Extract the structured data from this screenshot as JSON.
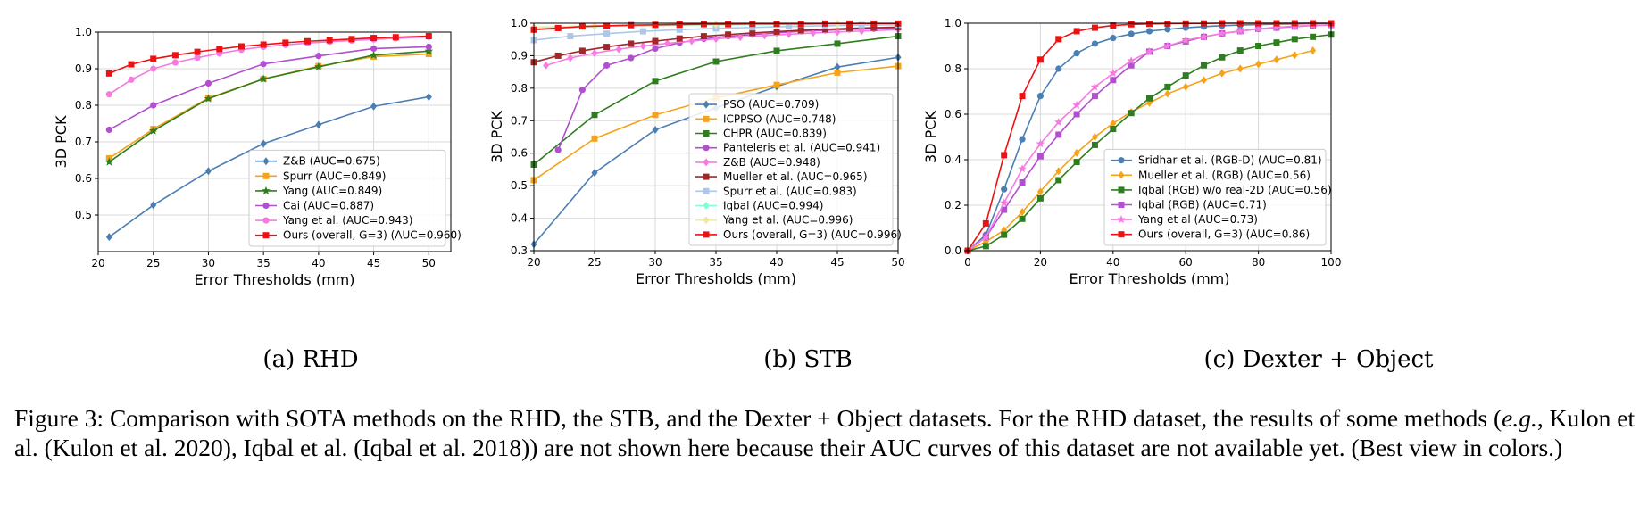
{
  "chart_data": [
    {
      "type": "line",
      "ylabel": "3D PCK",
      "xlabel": "Error Thresholds (mm)",
      "xlim": [
        20,
        52
      ],
      "ylim": [
        0.4,
        1.0
      ],
      "xticks": [
        20,
        25,
        30,
        35,
        40,
        45,
        50
      ],
      "yticks": [
        0.5,
        0.6,
        0.7,
        0.8,
        0.9,
        1.0
      ],
      "grid": true,
      "legend_position": "lower-right",
      "subcaption": "(a)  RHD",
      "x": [
        21,
        25,
        30,
        35,
        40,
        45,
        50
      ],
      "series": [
        {
          "name": "Z&B (AUC=0.675)",
          "color": "#4b7fb3",
          "marker": "diamond",
          "values": [
            0.44,
            0.527,
            0.62,
            0.695,
            0.747,
            0.797,
            0.823
          ]
        },
        {
          "name": "Spurr (AUC=0.849)",
          "color": "#f5a31a",
          "marker": "square",
          "values": [
            0.655,
            0.735,
            0.82,
            0.872,
            0.907,
            0.933,
            0.94
          ]
        },
        {
          "name": "Yang (AUC=0.849)",
          "color": "#2e7d1e",
          "marker": "star",
          "values": [
            0.645,
            0.73,
            0.818,
            0.872,
            0.905,
            0.937,
            0.948
          ]
        },
        {
          "name": "Cai (AUC=0.887)",
          "color": "#b24fcf",
          "marker": "circle",
          "values": [
            0.733,
            0.8,
            0.86,
            0.913,
            0.935,
            0.955,
            0.96
          ]
        },
        {
          "name": "Yang et al. (AUC=0.943)",
          "color": "#f57be0",
          "marker": "circle",
          "x": [
            21,
            23,
            25,
            27,
            29,
            31,
            33,
            35,
            37,
            39,
            41,
            43,
            45,
            47,
            50
          ],
          "values": [
            0.83,
            0.87,
            0.9,
            0.917,
            0.93,
            0.942,
            0.952,
            0.96,
            0.965,
            0.97,
            0.974,
            0.977,
            0.98,
            0.983,
            0.987
          ]
        },
        {
          "name": "Ours (overall, G=3) (AUC=0.960)",
          "color": "#ee1111",
          "marker": "square",
          "x": [
            21,
            23,
            25,
            27,
            29,
            31,
            33,
            35,
            37,
            39,
            41,
            43,
            45,
            47,
            50
          ],
          "values": [
            0.887,
            0.912,
            0.927,
            0.937,
            0.946,
            0.954,
            0.961,
            0.966,
            0.971,
            0.975,
            0.978,
            0.981,
            0.984,
            0.986,
            0.989
          ]
        }
      ]
    },
    {
      "type": "line",
      "ylabel": "3D PCK",
      "xlabel": "Error Thresholds (mm)",
      "xlim": [
        20,
        50
      ],
      "ylim": [
        0.3,
        1.0
      ],
      "xticks": [
        20,
        25,
        30,
        35,
        40,
        45,
        50
      ],
      "yticks": [
        0.3,
        0.4,
        0.5,
        0.6,
        0.7,
        0.8,
        0.9,
        1.0
      ],
      "grid": true,
      "legend_position": "lower-right",
      "subcaption": "(b)  STB",
      "x": [
        20,
        25,
        30,
        35,
        40,
        45,
        50
      ],
      "series": [
        {
          "name": "PSO (AUC=0.709)",
          "color": "#4b7fb3",
          "marker": "diamond",
          "values": [
            0.32,
            0.54,
            0.672,
            0.74,
            0.805,
            0.865,
            0.895
          ]
        },
        {
          "name": "ICPPSO (AUC=0.748)",
          "color": "#f5a31a",
          "marker": "square",
          "values": [
            0.517,
            0.645,
            0.718,
            0.77,
            0.81,
            0.848,
            0.868
          ]
        },
        {
          "name": "CHPR (AUC=0.839)",
          "color": "#2e7d1e",
          "marker": "square",
          "values": [
            0.565,
            0.718,
            0.822,
            0.882,
            0.915,
            0.937,
            0.96
          ]
        },
        {
          "name": "Panteleris et al. (AUC=0.941)",
          "color": "#b24fcf",
          "marker": "circle",
          "x": [
            22,
            24,
            26,
            28,
            30,
            32,
            34,
            36,
            38,
            40,
            42,
            44,
            46,
            48,
            50
          ],
          "values": [
            0.61,
            0.795,
            0.87,
            0.893,
            0.922,
            0.94,
            0.952,
            0.96,
            0.965,
            0.97,
            0.975,
            0.978,
            0.981,
            0.983,
            0.985
          ]
        },
        {
          "name": "Z&B (AUC=0.948)",
          "color": "#f57be0",
          "marker": "diamond",
          "x": [
            21,
            23,
            25,
            27,
            29,
            31,
            33,
            35,
            37,
            39,
            41,
            43,
            45,
            47,
            50
          ],
          "values": [
            0.87,
            0.893,
            0.908,
            0.92,
            0.93,
            0.938,
            0.945,
            0.952,
            0.957,
            0.962,
            0.966,
            0.97,
            0.973,
            0.976,
            0.98
          ]
        },
        {
          "name": "Mueller et al. (AUC=0.965)",
          "color": "#a3262a",
          "marker": "square",
          "x": [
            20,
            22,
            24,
            26,
            28,
            30,
            32,
            34,
            36,
            38,
            40,
            42,
            44,
            46,
            48,
            50
          ],
          "values": [
            0.88,
            0.9,
            0.915,
            0.927,
            0.937,
            0.945,
            0.953,
            0.96,
            0.965,
            0.97,
            0.974,
            0.978,
            0.981,
            0.984,
            0.986,
            0.988
          ]
        },
        {
          "name": "Spurr et al. (AUC=0.983)",
          "color": "#aec7e8",
          "marker": "square",
          "x": [
            20,
            23,
            26,
            29,
            32,
            35,
            38,
            41,
            44,
            47,
            50
          ],
          "values": [
            0.948,
            0.96,
            0.968,
            0.975,
            0.98,
            0.984,
            0.987,
            0.99,
            0.992,
            0.994,
            0.995
          ]
        },
        {
          "name": "Iqbal (AUC=0.994)",
          "color": "#7fffd4",
          "marker": "diamond",
          "x": [
            20,
            25,
            30,
            35,
            40,
            45,
            50
          ],
          "values": [
            0.985,
            0.99,
            0.993,
            0.995,
            0.996,
            0.997,
            0.998
          ]
        },
        {
          "name": "Yang et al. (AUC=0.996)",
          "color": "#f0e6a8",
          "marker": "diamond",
          "x": [
            20,
            25,
            30,
            35,
            40,
            45,
            50
          ],
          "values": [
            0.988,
            0.992,
            0.995,
            0.996,
            0.997,
            0.998,
            0.999
          ]
        },
        {
          "name": "Ours (overall, G=3) (AUC=0.996)",
          "color": "#ee1111",
          "marker": "square",
          "x": [
            20,
            22,
            24,
            26,
            28,
            30,
            32,
            34,
            36,
            38,
            40,
            42,
            44,
            46,
            48,
            50
          ],
          "values": [
            0.98,
            0.985,
            0.99,
            0.992,
            0.994,
            0.995,
            0.996,
            0.997,
            0.997,
            0.998,
            0.998,
            0.998,
            0.999,
            0.999,
            0.999,
            0.999
          ]
        }
      ]
    },
    {
      "type": "line",
      "ylabel": "3D PCK",
      "xlabel": "Error Thresholds (mm)",
      "xlim": [
        0,
        100
      ],
      "ylim": [
        0.0,
        1.0
      ],
      "xticks": [
        0,
        20,
        40,
        60,
        80,
        100
      ],
      "yticks": [
        0.0,
        0.2,
        0.4,
        0.6,
        0.8,
        1.0
      ],
      "grid": true,
      "legend_position": "lower-right",
      "subcaption": "(c)  Dexter + Object",
      "series": [
        {
          "name": "Sridhar et al. (RGB-D) (AUC=0.81)",
          "color": "#4b7fb3",
          "marker": "circle",
          "x": [
            0,
            5,
            10,
            15,
            20,
            25,
            30,
            35,
            40,
            45,
            50,
            55,
            60,
            65,
            70,
            75,
            80,
            85,
            90,
            95,
            100
          ],
          "values": [
            0.0,
            0.07,
            0.27,
            0.49,
            0.68,
            0.8,
            0.868,
            0.91,
            0.935,
            0.953,
            0.965,
            0.973,
            0.98,
            0.985,
            0.989,
            0.992,
            0.994,
            0.996,
            0.997,
            0.998,
            0.999
          ]
        },
        {
          "name": "Mueller et al. (RGB) (AUC=0.56)",
          "color": "#f5a31a",
          "marker": "diamond",
          "x": [
            0,
            5,
            10,
            15,
            20,
            25,
            30,
            35,
            40,
            45,
            50,
            55,
            60,
            65,
            70,
            75,
            80,
            85,
            90,
            95
          ],
          "values": [
            0.0,
            0.04,
            0.09,
            0.17,
            0.26,
            0.35,
            0.43,
            0.5,
            0.56,
            0.61,
            0.65,
            0.69,
            0.72,
            0.75,
            0.78,
            0.8,
            0.82,
            0.84,
            0.86,
            0.88
          ]
        },
        {
          "name": "Iqbal (RGB) w/o real-2D (AUC=0.56)",
          "color": "#2e7d1e",
          "marker": "square",
          "x": [
            0,
            5,
            10,
            15,
            20,
            25,
            30,
            35,
            40,
            45,
            50,
            55,
            60,
            65,
            70,
            75,
            80,
            85,
            90,
            95,
            100
          ],
          "values": [
            0.0,
            0.02,
            0.07,
            0.14,
            0.23,
            0.31,
            0.39,
            0.465,
            0.535,
            0.605,
            0.67,
            0.72,
            0.77,
            0.815,
            0.85,
            0.88,
            0.9,
            0.915,
            0.93,
            0.94,
            0.95
          ]
        },
        {
          "name": "Iqbal (RGB) (AUC=0.71)",
          "color": "#b24fcf",
          "marker": "square",
          "x": [
            0,
            5,
            10,
            15,
            20,
            25,
            30,
            35,
            40,
            45,
            50,
            55,
            60,
            65,
            70,
            75,
            80,
            85,
            90,
            95,
            100
          ],
          "values": [
            0.0,
            0.06,
            0.18,
            0.3,
            0.415,
            0.51,
            0.6,
            0.68,
            0.75,
            0.815,
            0.875,
            0.9,
            0.92,
            0.94,
            0.955,
            0.965,
            0.975,
            0.98,
            0.985,
            0.99,
            0.992
          ]
        },
        {
          "name": "Yang et al (AUC=0.73)",
          "color": "#f57be0",
          "marker": "star",
          "x": [
            0,
            5,
            10,
            15,
            20,
            25,
            30,
            35,
            40,
            45,
            50,
            55,
            60,
            65,
            70,
            75,
            80,
            85,
            90,
            95,
            100
          ],
          "values": [
            0.0,
            0.06,
            0.21,
            0.36,
            0.47,
            0.565,
            0.64,
            0.72,
            0.78,
            0.835,
            0.875,
            0.9,
            0.925,
            0.94,
            0.955,
            0.965,
            0.975,
            0.982,
            0.987,
            0.99,
            0.993
          ]
        },
        {
          "name": "Ours (overall, G=3) (AUC=0.86)",
          "color": "#ee1111",
          "marker": "square",
          "x": [
            0,
            5,
            10,
            15,
            20,
            25,
            30,
            35,
            40,
            45,
            50,
            55,
            60,
            65,
            70,
            75,
            80,
            85,
            90,
            95,
            100
          ],
          "values": [
            0.0,
            0.12,
            0.42,
            0.68,
            0.84,
            0.93,
            0.965,
            0.98,
            0.99,
            0.995,
            0.997,
            0.998,
            0.999,
            0.999,
            1.0,
            1.0,
            1.0,
            1.0,
            1.0,
            1.0,
            1.0
          ]
        }
      ]
    }
  ],
  "caption": {
    "part1": "Figure 3: Comparison with SOTA methods on the RHD, the STB, and the Dexter + Object datasets. For the RHD dataset, the results of some methods (",
    "eg": "e.g.",
    "part2": ", Kulon et al. (Kulon et al. 2020), Iqbal et al. (Iqbal et al. 2018)) are not shown here because their AUC curves of this dataset are not available yet. (Best view in colors.)"
  }
}
